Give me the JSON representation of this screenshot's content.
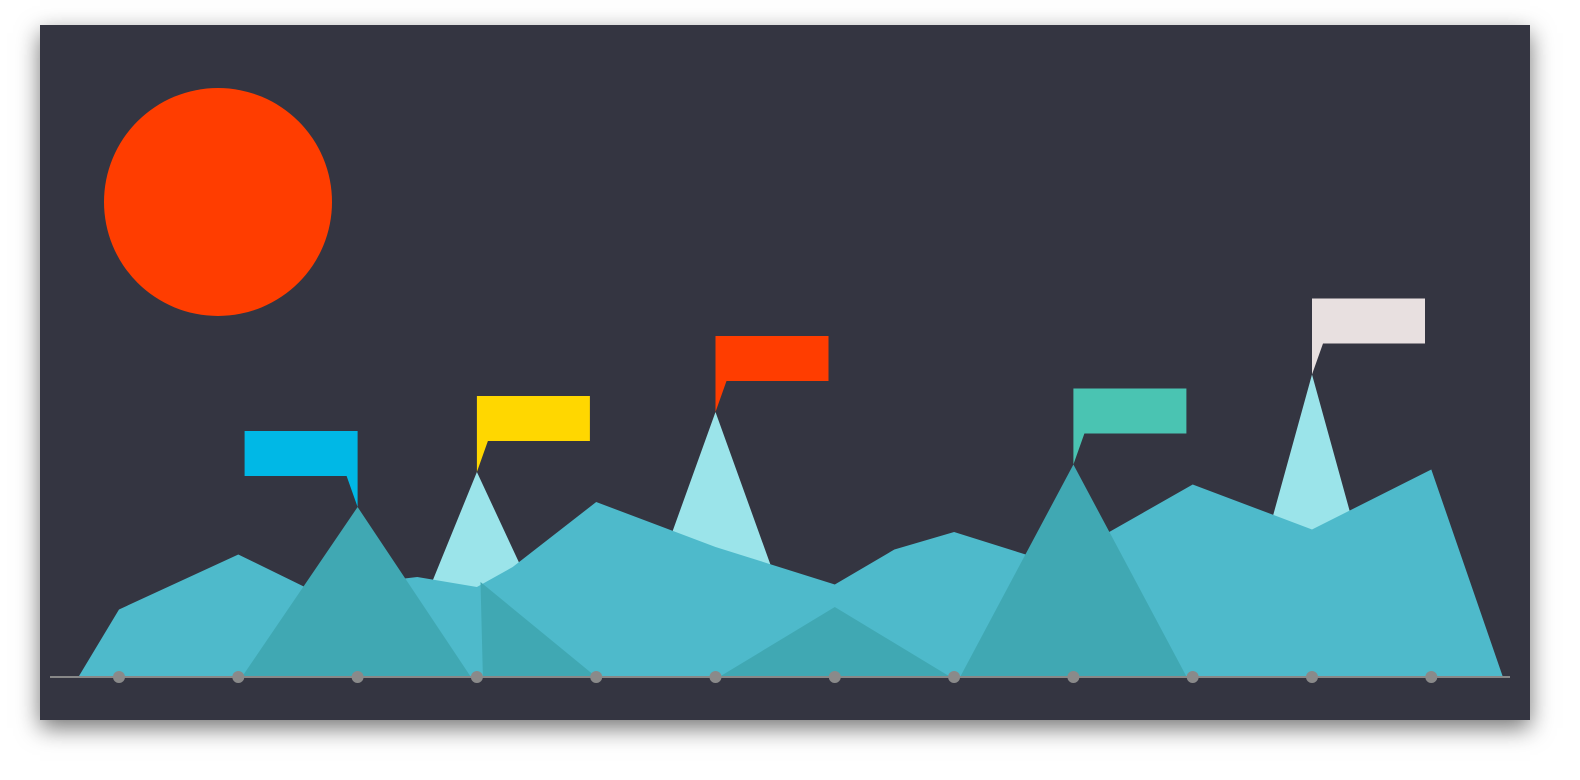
{
  "colors": {
    "background": "#343541",
    "sun": "#FF3D00",
    "front_range": "#4EBACB",
    "peak_light": "#9BE4EA",
    "peak_dark": "#40A8B3",
    "axis": "#888888",
    "tick": "#8A8A8A"
  },
  "chart_data": {
    "type": "area",
    "x": [
      1,
      2,
      3,
      4,
      5,
      6,
      7,
      8,
      9,
      10,
      11,
      12
    ],
    "xlim": [
      0.66,
      13.0
    ],
    "ylim": [
      0,
      100
    ],
    "grid": false,
    "legend": "none",
    "decorations": {
      "sun": {
        "icon": "sun-circle"
      },
      "flags": [
        {
          "peak_x": 3,
          "color": "#00B8E6",
          "direction": "left"
        },
        {
          "peak_x": 4,
          "color": "#FFD700",
          "direction": "right"
        },
        {
          "peak_x": 6,
          "color": "#FF3D00",
          "direction": "right"
        },
        {
          "peak_x": 9,
          "color": "#4AC4B2",
          "direction": "right"
        },
        {
          "peak_x": 11,
          "color": "#E8E0E0",
          "direction": "right"
        }
      ]
    },
    "series": [
      {
        "role": "light-peaks",
        "color": "#9BE4EA",
        "points": [
          [
            3.3,
            0
          ],
          [
            4,
            82
          ],
          [
            4.8,
            0
          ],
          [
            5.2,
            0
          ],
          [
            6,
            106
          ],
          [
            6.8,
            0
          ],
          [
            10.3,
            0
          ],
          [
            11,
            121
          ],
          [
            11.7,
            0
          ]
        ]
      },
      {
        "role": "front-range",
        "color": "#4EBACB",
        "points": [
          [
            0.66,
            0
          ],
          [
            1,
            27
          ],
          [
            2,
            49
          ],
          [
            2.6,
            35
          ],
          [
            3.5,
            40
          ],
          [
            4,
            36
          ],
          [
            4.3,
            44
          ],
          [
            5,
            70
          ],
          [
            6,
            52
          ],
          [
            7,
            37
          ],
          [
            7.5,
            51
          ],
          [
            8,
            58
          ],
          [
            8.6,
            49
          ],
          [
            9.3,
            58
          ],
          [
            10,
            77
          ],
          [
            11,
            59
          ],
          [
            12,
            83
          ],
          [
            12.6,
            0
          ]
        ]
      },
      {
        "role": "dark-peaks",
        "color": "#40A8B3",
        "points": [
          [
            2.03,
            0
          ],
          [
            3,
            68
          ],
          [
            3.95,
            0
          ],
          [
            4.05,
            0
          ],
          [
            4.03,
            38
          ],
          [
            5,
            0
          ],
          [
            6.03,
            0
          ],
          [
            7,
            28
          ],
          [
            7.97,
            0
          ],
          [
            8.05,
            0
          ],
          [
            9,
            85
          ],
          [
            9.95,
            0
          ]
        ]
      }
    ]
  }
}
